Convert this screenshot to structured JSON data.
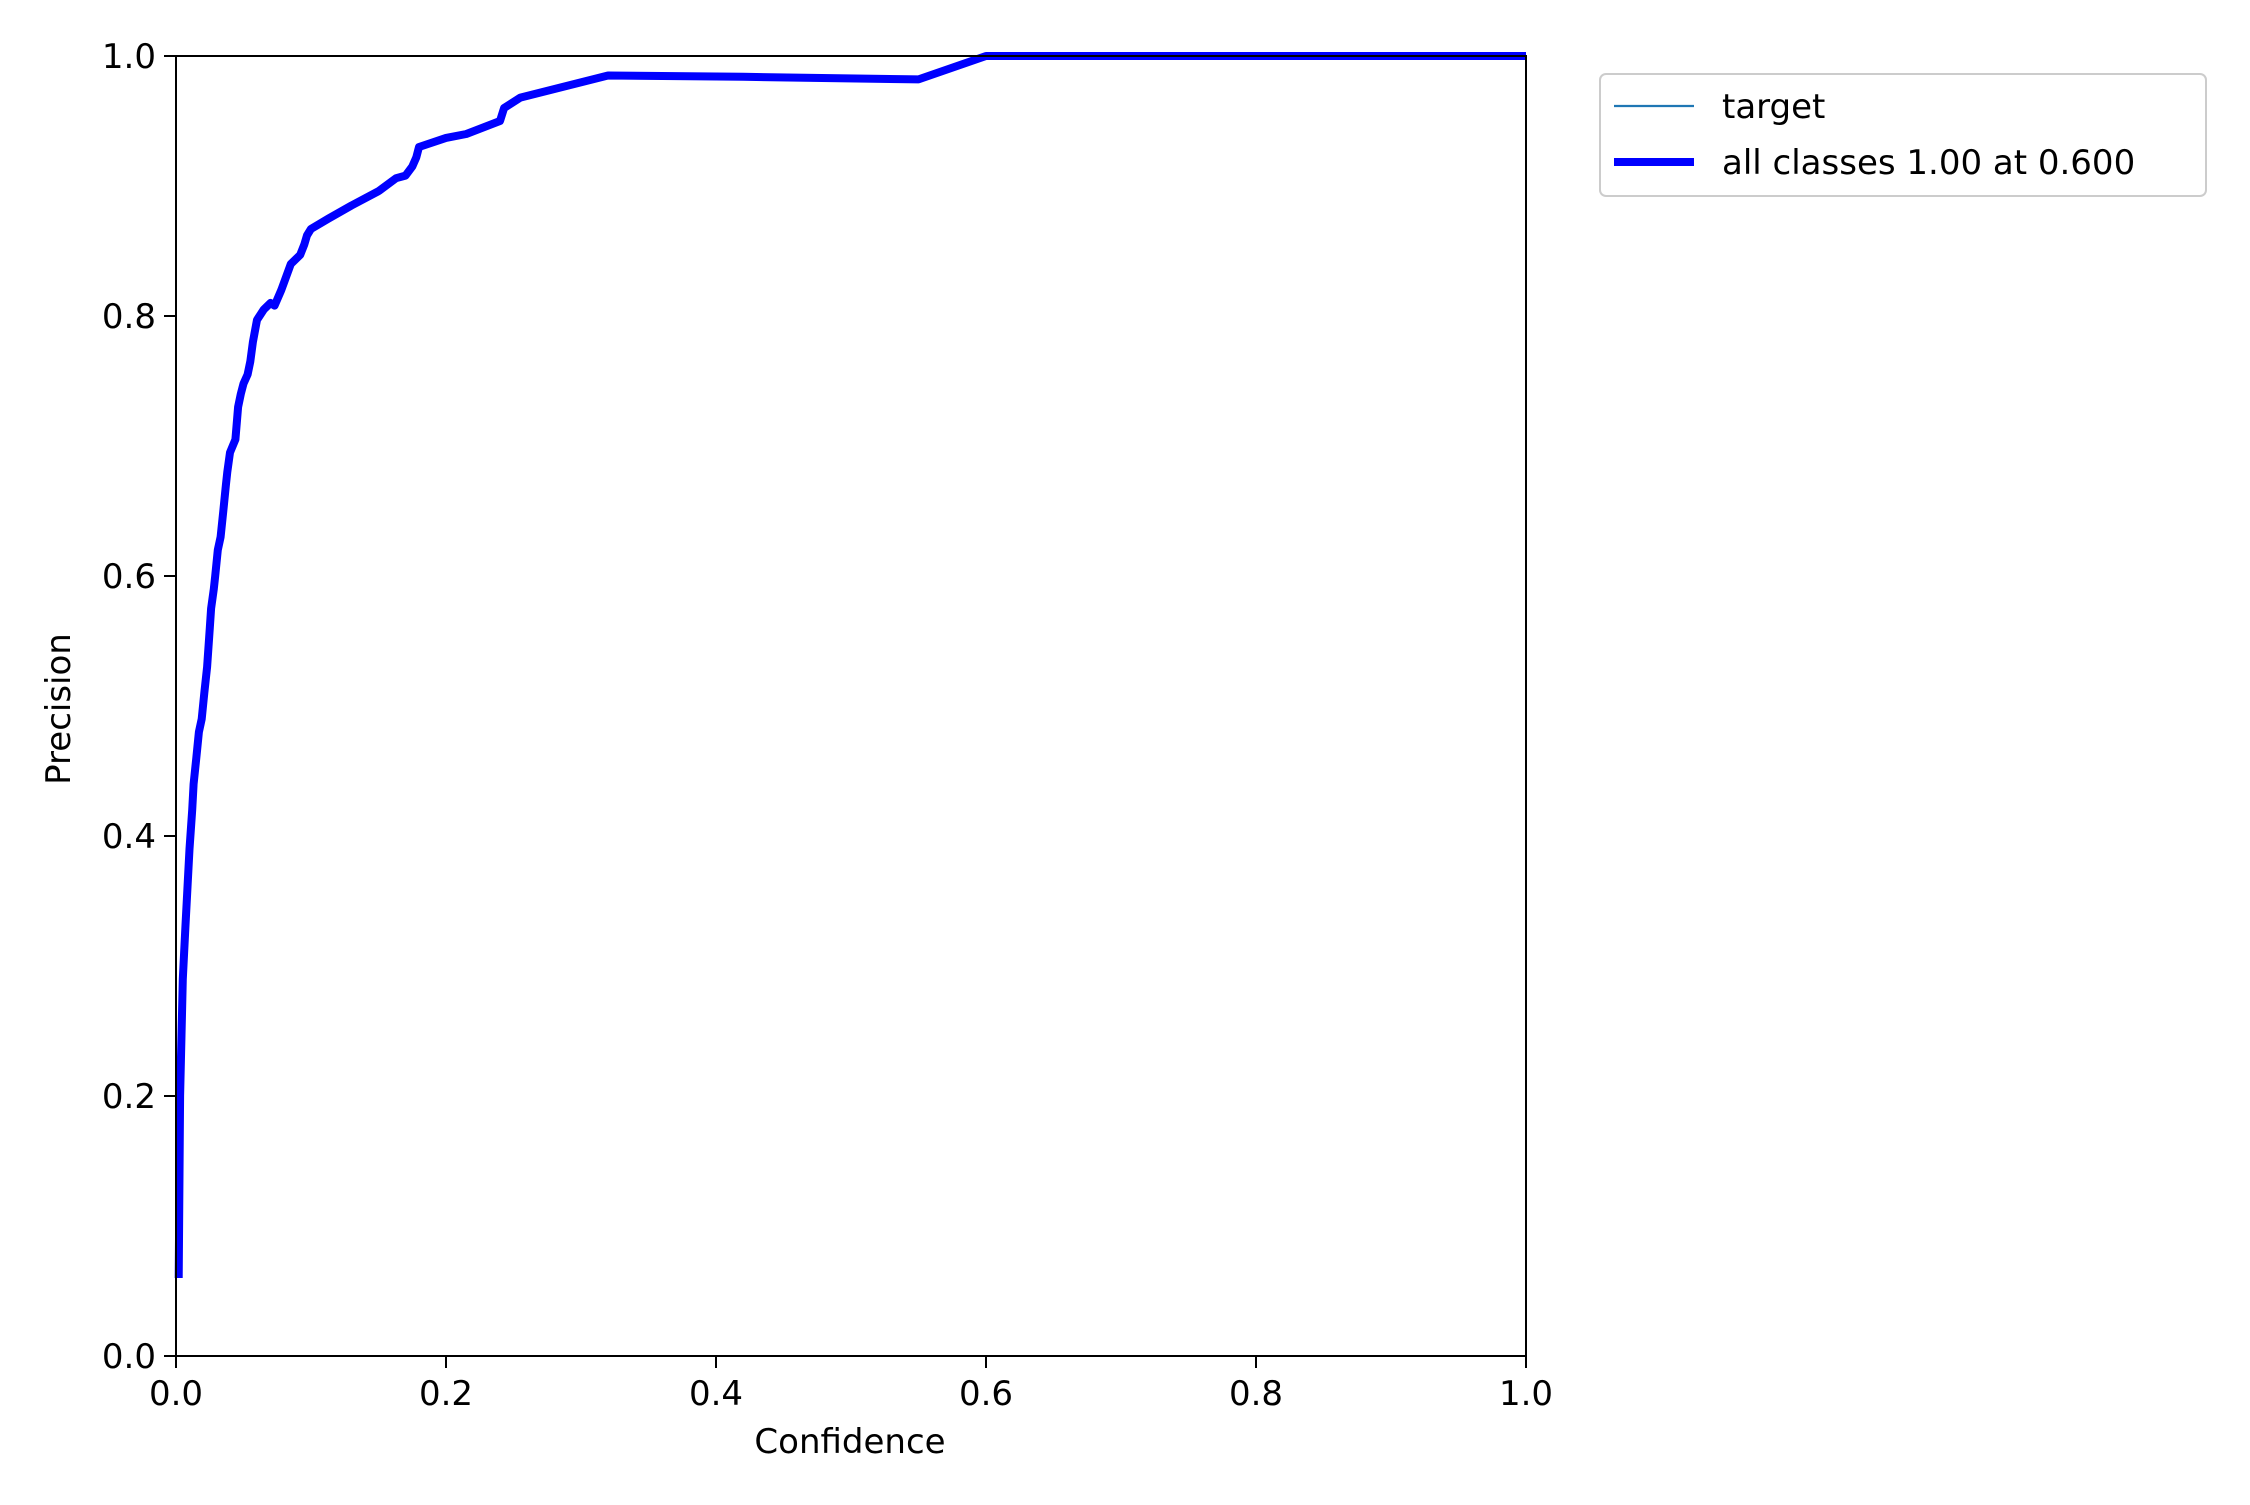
{
  "chart_data": {
    "type": "line",
    "title": "",
    "xlabel": "Confidence",
    "ylabel": "Precision",
    "xlim": [
      0.0,
      1.0
    ],
    "ylim": [
      0.0,
      1.0
    ],
    "grid": false,
    "legend_position": "outside-top-right",
    "x_ticks": [
      "0.0",
      "0.2",
      "0.4",
      "0.6",
      "0.8",
      "1.0"
    ],
    "y_ticks": [
      "0.0",
      "0.2",
      "0.4",
      "0.6",
      "0.8",
      "1.0"
    ],
    "series": [
      {
        "name": "target",
        "color": "#1f77b4",
        "style": "thin",
        "x": [],
        "y": []
      },
      {
        "name": "all classes 1.00 at 0.600",
        "color": "#0000ff",
        "style": "thick",
        "x": [
          0.002,
          0.003,
          0.005,
          0.007,
          0.01,
          0.012,
          0.013,
          0.015,
          0.017,
          0.019,
          0.021,
          0.023,
          0.025,
          0.026,
          0.028,
          0.029,
          0.031,
          0.033,
          0.035,
          0.037,
          0.038,
          0.04,
          0.042,
          0.044,
          0.046,
          0.048,
          0.05,
          0.053,
          0.055,
          0.057,
          0.06,
          0.065,
          0.07,
          0.073,
          0.078,
          0.085,
          0.092,
          0.095,
          0.097,
          0.1,
          0.113,
          0.13,
          0.15,
          0.163,
          0.17,
          0.175,
          0.178,
          0.18,
          0.2,
          0.215,
          0.24,
          0.243,
          0.255,
          0.32,
          0.42,
          0.55,
          0.6,
          0.7,
          0.8,
          0.9,
          1.0
        ],
        "y": [
          0.06,
          0.2,
          0.29,
          0.33,
          0.39,
          0.42,
          0.44,
          0.46,
          0.48,
          0.49,
          0.51,
          0.53,
          0.56,
          0.575,
          0.59,
          0.6,
          0.62,
          0.63,
          0.65,
          0.67,
          0.68,
          0.695,
          0.7,
          0.705,
          0.73,
          0.74,
          0.748,
          0.755,
          0.765,
          0.78,
          0.797,
          0.805,
          0.81,
          0.808,
          0.82,
          0.84,
          0.847,
          0.855,
          0.862,
          0.867,
          0.875,
          0.885,
          0.896,
          0.906,
          0.908,
          0.915,
          0.922,
          0.93,
          0.937,
          0.94,
          0.95,
          0.96,
          0.968,
          0.985,
          0.984,
          0.982,
          1.0,
          1.0,
          1.0,
          1.0,
          1.0
        ]
      }
    ]
  }
}
